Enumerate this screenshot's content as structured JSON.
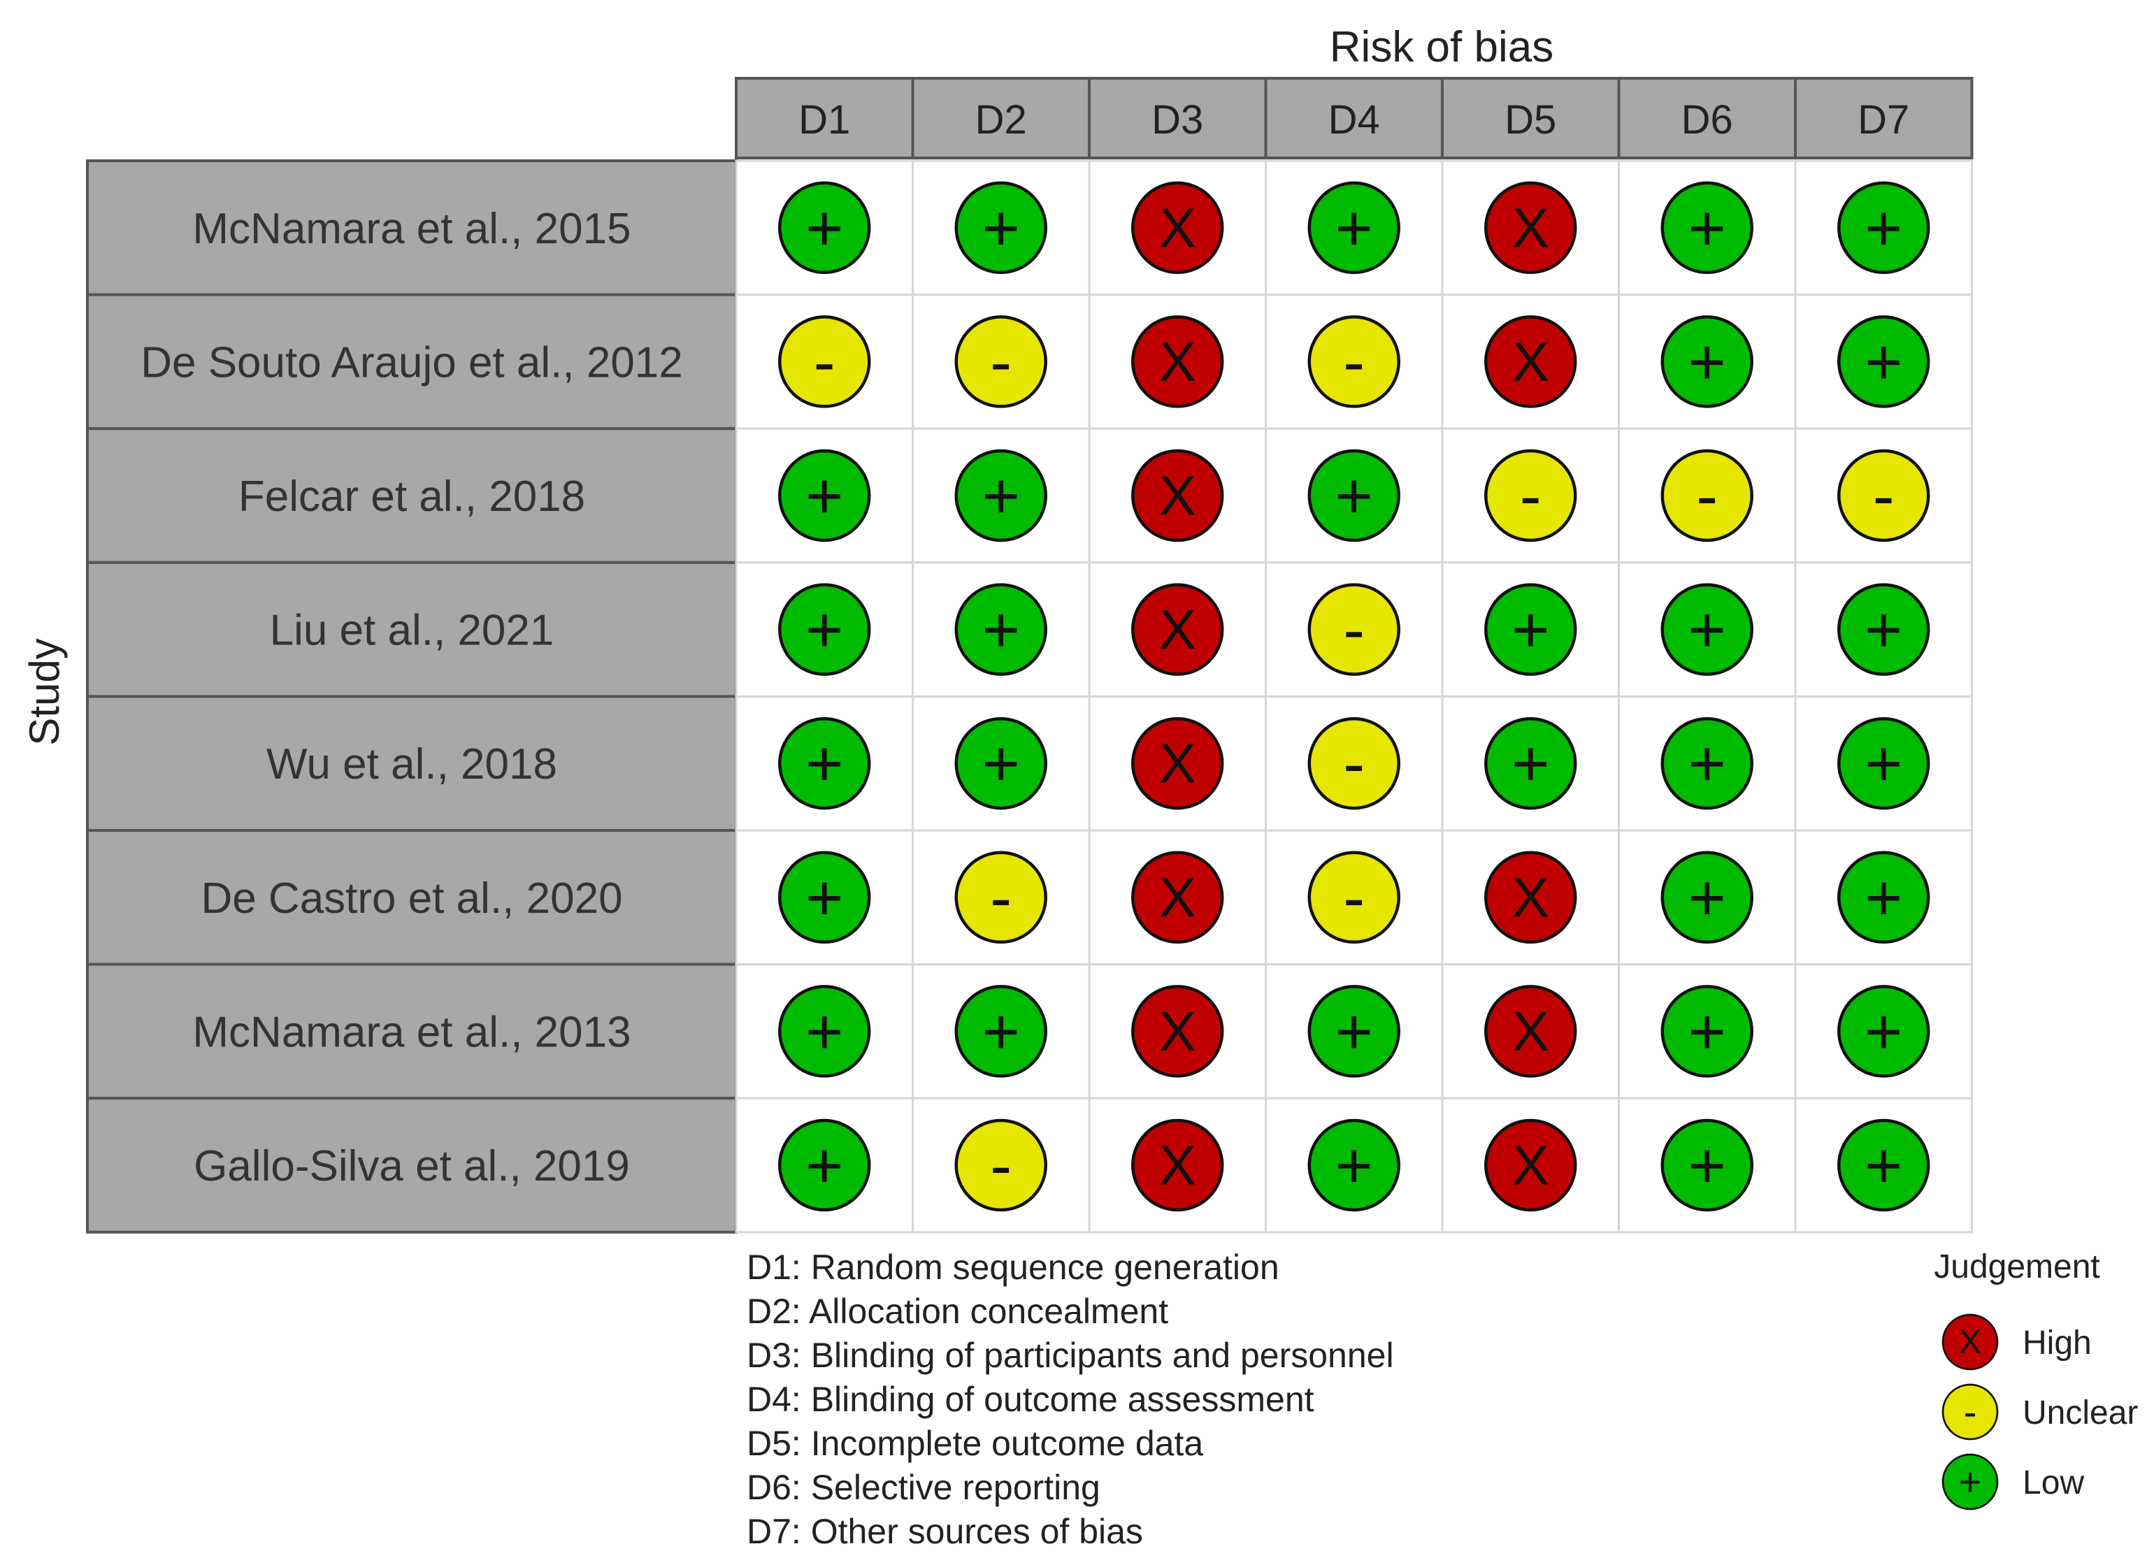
{
  "chart_data": {
    "type": "table",
    "top_label": "Risk of bias",
    "row_axis_label": "Study",
    "domains": [
      "D1",
      "D2",
      "D3",
      "D4",
      "D5",
      "D6",
      "D7"
    ],
    "studies": [
      {
        "name": "McNamara et al., 2015",
        "judgements": [
          "Low",
          "Low",
          "High",
          "Low",
          "High",
          "Low",
          "Low"
        ]
      },
      {
        "name": "De Souto Araujo et al., 2012",
        "judgements": [
          "Unclear",
          "Unclear",
          "High",
          "Unclear",
          "High",
          "Low",
          "Low"
        ]
      },
      {
        "name": "Felcar et al., 2018",
        "judgements": [
          "Low",
          "Low",
          "High",
          "Low",
          "Unclear",
          "Unclear",
          "Unclear"
        ]
      },
      {
        "name": "Liu et al., 2021",
        "judgements": [
          "Low",
          "Low",
          "High",
          "Unclear",
          "Low",
          "Low",
          "Low"
        ]
      },
      {
        "name": "Wu et al., 2018",
        "judgements": [
          "Low",
          "Low",
          "High",
          "Unclear",
          "Low",
          "Low",
          "Low"
        ]
      },
      {
        "name": "De Castro et al., 2020",
        "judgements": [
          "Low",
          "Unclear",
          "High",
          "Unclear",
          "High",
          "Low",
          "Low"
        ]
      },
      {
        "name": "McNamara et al., 2013",
        "judgements": [
          "Low",
          "Low",
          "High",
          "Low",
          "High",
          "Low",
          "Low"
        ]
      },
      {
        "name": "Gallo-Silva et al., 2019",
        "judgements": [
          "Low",
          "Unclear",
          "High",
          "Low",
          "High",
          "Low",
          "Low"
        ]
      }
    ],
    "domain_descriptions": [
      "D1: Random sequence generation",
      "D2: Allocation concealment",
      "D3: Blinding of participants and personnel",
      "D4: Blinding of outcome assessment",
      "D5: Incomplete outcome data",
      "D6: Selective reporting",
      "D7: Other sources of bias"
    ],
    "legend": {
      "title": "Judgement",
      "placement": "bottom-right",
      "items": [
        {
          "level": "High",
          "label": "High",
          "symbol": "X",
          "color": "#C00000"
        },
        {
          "level": "Unclear",
          "label": "Unclear",
          "symbol": "-",
          "color": "#E6E600"
        },
        {
          "level": "Low",
          "label": "Low",
          "symbol": "+",
          "color": "#00BB00"
        }
      ]
    }
  }
}
